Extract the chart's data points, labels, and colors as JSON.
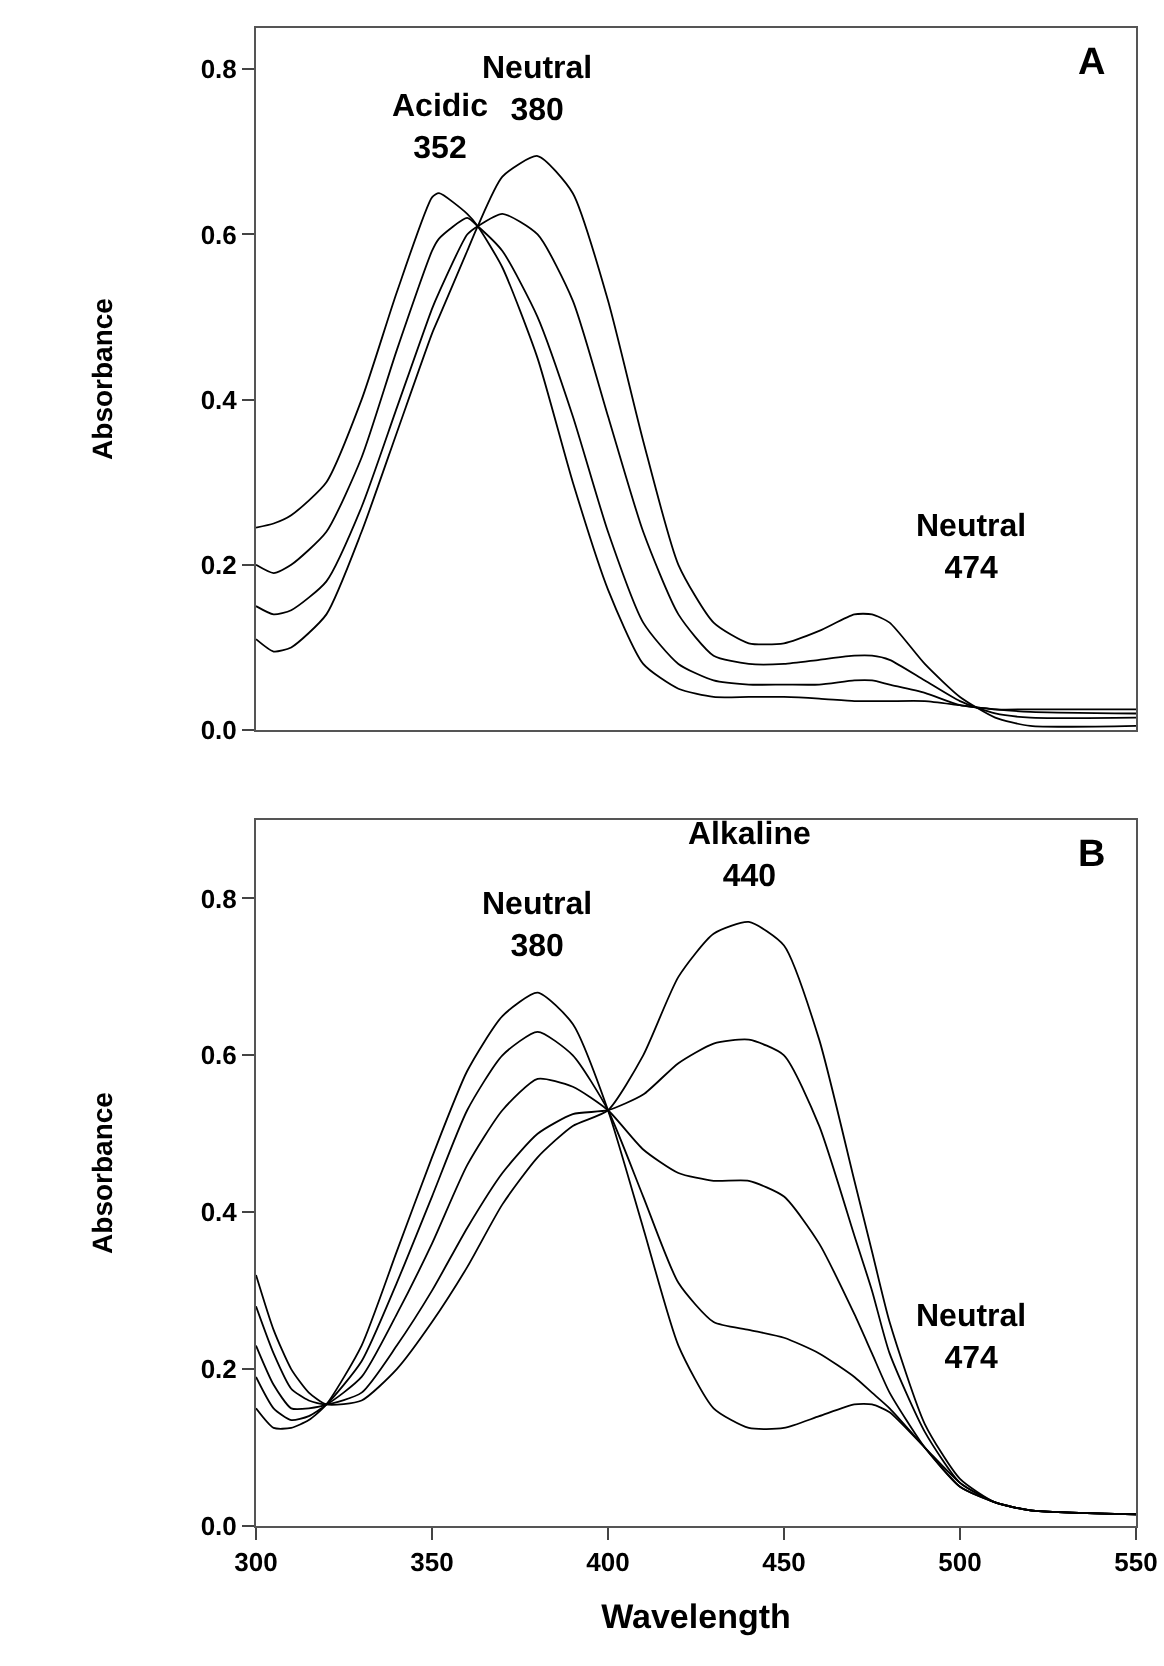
{
  "chart_data": [
    {
      "type": "line",
      "ylabel": "Absorbance",
      "xlim": [
        300,
        550
      ],
      "ylim": [
        0,
        0.85
      ],
      "yticks": [
        {
          "value": 0,
          "label": "0.0"
        },
        0.2,
        0.4,
        0.6,
        0.8
      ],
      "tick_labels": "y",
      "marker": "none",
      "line_style": "solid",
      "x": [
        300,
        305,
        310,
        320,
        330,
        340,
        350,
        352,
        360,
        363,
        370,
        380,
        390,
        400,
        410,
        420,
        430,
        440,
        450,
        460,
        470,
        475,
        480,
        490,
        500,
        510,
        520,
        550
      ],
      "annotations": [
        {
          "text": "Acidic\n352",
          "x": 352,
          "y": 0.65
        },
        {
          "text": "Neutral\n380",
          "x": 380,
          "y": 0.695
        },
        {
          "text": "Neutral\n474",
          "x": 474,
          "y": 0.14
        },
        "A"
      ],
      "series": [
        {
          "color": "#000000",
          "values": [
            0.245,
            0.25,
            0.26,
            0.3,
            0.4,
            0.53,
            0.645,
            0.65,
            0.625,
            0.61,
            0.56,
            0.45,
            0.3,
            0.17,
            0.08,
            0.05,
            0.04,
            0.04,
            0.04,
            0.038,
            0.035,
            0.035,
            0.035,
            0.035,
            0.03,
            0.025,
            0.025,
            0.025
          ]
        },
        {
          "color": "#000000",
          "values": [
            0.2,
            0.19,
            0.2,
            0.24,
            0.33,
            0.46,
            0.58,
            0.595,
            0.62,
            0.61,
            0.58,
            0.5,
            0.38,
            0.24,
            0.13,
            0.08,
            0.06,
            0.055,
            0.055,
            0.055,
            0.06,
            0.06,
            0.055,
            0.045,
            0.03,
            0.025,
            0.022,
            0.02
          ]
        },
        {
          "color": "#000000",
          "values": [
            0.15,
            0.14,
            0.145,
            0.18,
            0.27,
            0.39,
            0.51,
            0.53,
            0.6,
            0.61,
            0.625,
            0.6,
            0.52,
            0.38,
            0.24,
            0.14,
            0.09,
            0.08,
            0.08,
            0.085,
            0.09,
            0.09,
            0.085,
            0.06,
            0.035,
            0.02,
            0.015,
            0.015
          ]
        },
        {
          "color": "#000000",
          "values": [
            0.11,
            0.095,
            0.1,
            0.14,
            0.24,
            0.36,
            0.48,
            0.5,
            0.58,
            0.61,
            0.67,
            0.695,
            0.65,
            0.52,
            0.35,
            0.2,
            0.13,
            0.105,
            0.105,
            0.12,
            0.14,
            0.14,
            0.13,
            0.08,
            0.04,
            0.015,
            0.005,
            0.005
          ]
        }
      ]
    },
    {
      "type": "line",
      "ylabel": "Absorbance",
      "xlabel": "Wavelength",
      "xlim": [
        300,
        550
      ],
      "xticks": [
        300,
        350,
        400,
        450,
        500,
        550
      ],
      "ylim": [
        0,
        0.9
      ],
      "yticks": [
        {
          "value": 0,
          "label": "0.0"
        },
        0.2,
        0.4,
        0.6,
        0.8
      ],
      "marker": "none",
      "line_style": "solid",
      "x": [
        300,
        305,
        310,
        315,
        320,
        330,
        340,
        350,
        360,
        370,
        380,
        390,
        400,
        410,
        420,
        430,
        440,
        450,
        460,
        470,
        475,
        480,
        490,
        500,
        510,
        520,
        550
      ],
      "annotations": [
        {
          "text": "Neutral\n380",
          "x": 380,
          "y": 0.68
        },
        {
          "text": "Alkaline\n440",
          "x": 440,
          "y": 0.77
        },
        {
          "text": "Neutral\n474",
          "x": 474,
          "y": 0.155
        },
        "B"
      ],
      "series": [
        {
          "color": "#000000",
          "values": [
            0.15,
            0.125,
            0.125,
            0.135,
            0.155,
            0.23,
            0.35,
            0.47,
            0.58,
            0.65,
            0.68,
            0.64,
            0.53,
            0.38,
            0.23,
            0.15,
            0.125,
            0.125,
            0.14,
            0.155,
            0.155,
            0.145,
            0.1,
            0.055,
            0.03,
            0.02,
            0.015
          ]
        },
        {
          "color": "#000000",
          "values": [
            0.19,
            0.15,
            0.135,
            0.14,
            0.155,
            0.21,
            0.31,
            0.42,
            0.53,
            0.6,
            0.63,
            0.6,
            0.53,
            0.42,
            0.31,
            0.26,
            0.25,
            0.24,
            0.22,
            0.19,
            0.17,
            0.15,
            0.1,
            0.05,
            0.03,
            0.02,
            0.015
          ]
        },
        {
          "color": "#000000",
          "values": [
            0.23,
            0.18,
            0.15,
            0.15,
            0.155,
            0.19,
            0.27,
            0.36,
            0.46,
            0.53,
            0.57,
            0.56,
            0.53,
            0.48,
            0.45,
            0.44,
            0.44,
            0.42,
            0.36,
            0.27,
            0.22,
            0.17,
            0.1,
            0.05,
            0.03,
            0.02,
            0.015
          ]
        },
        {
          "color": "#000000",
          "values": [
            0.28,
            0.22,
            0.175,
            0.16,
            0.155,
            0.17,
            0.23,
            0.3,
            0.38,
            0.45,
            0.5,
            0.525,
            0.53,
            0.55,
            0.59,
            0.615,
            0.62,
            0.6,
            0.51,
            0.37,
            0.3,
            0.22,
            0.12,
            0.055,
            0.03,
            0.02,
            0.015
          ]
        },
        {
          "color": "#000000",
          "values": [
            0.32,
            0.25,
            0.2,
            0.17,
            0.155,
            0.16,
            0.2,
            0.26,
            0.33,
            0.41,
            0.47,
            0.51,
            0.53,
            0.6,
            0.7,
            0.755,
            0.77,
            0.74,
            0.62,
            0.44,
            0.35,
            0.26,
            0.13,
            0.06,
            0.03,
            0.02,
            0.015
          ]
        }
      ]
    }
  ]
}
